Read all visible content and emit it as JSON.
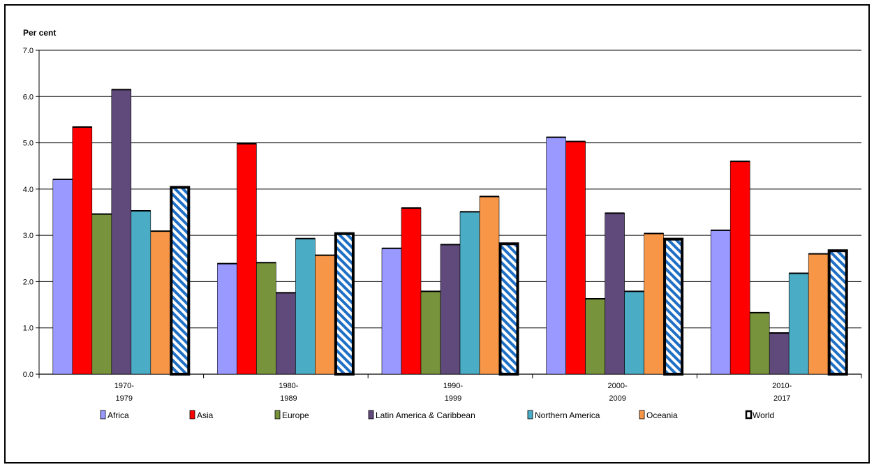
{
  "chart_data": {
    "type": "bar",
    "ylabel": "Per cent",
    "ylim": [
      0,
      7
    ],
    "yticks": [
      "0.0",
      "1.0",
      "2.0",
      "3.0",
      "4.0",
      "5.0",
      "6.0",
      "7.0"
    ],
    "grid": true,
    "legend_position": "bottom",
    "categories": [
      [
        "1970-",
        "1979"
      ],
      [
        "1980-",
        "1989"
      ],
      [
        "1990-",
        "1999"
      ],
      [
        "2000-",
        "2009"
      ],
      [
        "2010-",
        "2017"
      ]
    ],
    "series": [
      {
        "name": "Africa",
        "color": "#9999ff",
        "pattern": "solid",
        "values": [
          4.21,
          2.39,
          2.72,
          5.12,
          3.11
        ]
      },
      {
        "name": "Asia",
        "color": "#ff0000",
        "pattern": "solid",
        "values": [
          5.34,
          4.98,
          3.59,
          5.03,
          4.6
        ]
      },
      {
        "name": "Europe",
        "color": "#77933c",
        "pattern": "solid",
        "values": [
          3.46,
          2.41,
          1.79,
          1.63,
          1.33
        ]
      },
      {
        "name": "Latin America & Caribbean",
        "color": "#604a7b",
        "pattern": "solid",
        "values": [
          6.15,
          1.76,
          2.8,
          3.48,
          0.89
        ]
      },
      {
        "name": "Northern America",
        "color": "#4bacc6",
        "pattern": "solid",
        "values": [
          3.53,
          2.93,
          3.51,
          1.79,
          2.18
        ]
      },
      {
        "name": "Oceania",
        "color": "#f79646",
        "pattern": "solid",
        "values": [
          3.09,
          2.57,
          3.84,
          3.04,
          2.6
        ]
      },
      {
        "name": "World",
        "color": "#1f6fc5",
        "pattern": "hatch",
        "values": [
          4.06,
          3.06,
          2.84,
          2.94,
          2.69
        ]
      }
    ]
  }
}
